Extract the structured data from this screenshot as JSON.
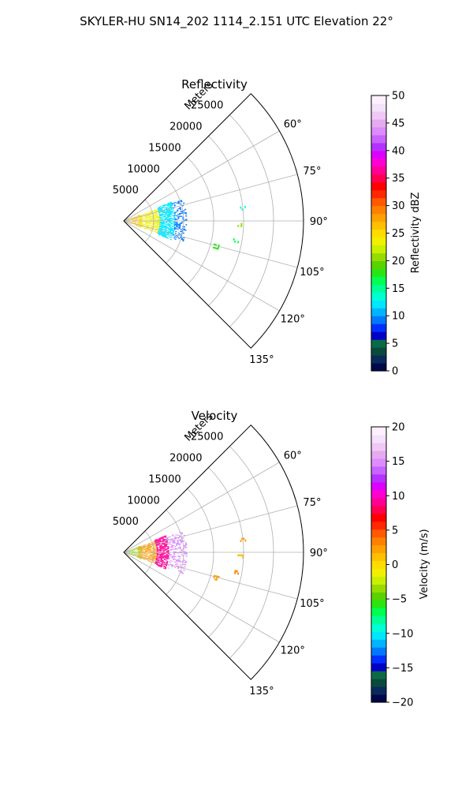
{
  "suptitle": "SKYLER-HU  SN14_202  1114_2.151 UTC Elevation 22°",
  "chart_data": [
    {
      "type": "heatmap",
      "projection": "polar-sector",
      "title": "Reflectivity",
      "radial_axis_label": "Meters",
      "radial_ticks": [
        5000,
        10000,
        15000,
        20000,
        25000
      ],
      "radial_tick_labels": [
        "5000",
        "10000",
        "15000",
        "20000",
        "25000"
      ],
      "rlim": [
        0,
        30000
      ],
      "angle_range_deg": [
        45,
        135
      ],
      "angle_ticks": [
        60,
        75,
        90,
        105,
        120,
        135
      ],
      "angle_tick_labels": [
        "60°",
        "75°",
        "90°",
        "105°",
        "120°",
        "135°"
      ],
      "grid": true,
      "colorbar": {
        "label": "Reflectivity dBZ",
        "range": [
          0,
          50
        ],
        "ticks": [
          0,
          5,
          10,
          15,
          20,
          25,
          30,
          35,
          40,
          45,
          50
        ],
        "tick_labels": [
          "0",
          "5",
          "10",
          "15",
          "20",
          "25",
          "30",
          "35",
          "40",
          "45",
          "50"
        ],
        "colors": [
          "#00084a",
          "#0a2a5c",
          "#0a4a3c",
          "#0a6a46",
          "#0000c8",
          "#0030ff",
          "#0078ff",
          "#00b4ff",
          "#00e6ff",
          "#00ffd2",
          "#00ff96",
          "#00ff50",
          "#28e614",
          "#5ad200",
          "#96dc00",
          "#c8f000",
          "#f0f000",
          "#ffdc00",
          "#ffc000",
          "#ffa000",
          "#ff8000",
          "#ff5a00",
          "#ff2800",
          "#ff0000",
          "#ff0050",
          "#ff0096",
          "#ff00d2",
          "#dc00ff",
          "#b432ff",
          "#c864ff",
          "#dc8cff",
          "#e6aaf0",
          "#f0c8f5",
          "#f5e1fa",
          "#fff0ff"
        ]
      },
      "data": [
        {
          "range": [
            0,
            3000
          ],
          "angle": [
            68,
            112
          ],
          "value": 27,
          "density": 0.55
        },
        {
          "range": [
            2500,
            6000
          ],
          "angle": [
            70,
            110
          ],
          "value": 23,
          "density": 0.65
        },
        {
          "range": [
            6000,
            8500
          ],
          "angle": [
            68,
            112
          ],
          "value": 12,
          "density": 0.7
        },
        {
          "range": [
            8500,
            10500
          ],
          "angle": [
            70,
            110
          ],
          "value": 9,
          "density": 0.35
        },
        {
          "range": [
            19500,
            20500
          ],
          "angle": [
            83,
            85
          ],
          "value": 14,
          "density": 0.5
        },
        {
          "range": [
            19000,
            20000
          ],
          "angle": [
            91,
            93
          ],
          "value": 20,
          "density": 0.5
        },
        {
          "range": [
            18500,
            19500
          ],
          "angle": [
            99,
            101
          ],
          "value": 16,
          "density": 0.5
        },
        {
          "range": [
            15500,
            16500
          ],
          "angle": [
            104,
            107
          ],
          "value": 18,
          "density": 0.5
        }
      ]
    },
    {
      "type": "heatmap",
      "projection": "polar-sector",
      "title": "Velocity",
      "radial_axis_label": "Meters",
      "radial_ticks": [
        5000,
        10000,
        15000,
        20000,
        25000
      ],
      "radial_tick_labels": [
        "5000",
        "10000",
        "15000",
        "20000",
        "25000"
      ],
      "rlim": [
        0,
        30000
      ],
      "angle_range_deg": [
        45,
        135
      ],
      "angle_ticks": [
        60,
        75,
        90,
        105,
        120,
        135
      ],
      "angle_tick_labels": [
        "60°",
        "75°",
        "90°",
        "105°",
        "120°",
        "135°"
      ],
      "grid": true,
      "colorbar": {
        "label": "Velocity (m/s)",
        "range": [
          -20,
          20
        ],
        "ticks": [
          -20,
          -15,
          -10,
          -5,
          0,
          5,
          10,
          15,
          20
        ],
        "tick_labels": [
          "−20",
          "−15",
          "−10",
          "−5",
          "0",
          "5",
          "10",
          "15",
          "20"
        ],
        "colors": [
          "#00084a",
          "#0a2a5c",
          "#0a4a3c",
          "#0a6a46",
          "#0000c8",
          "#0030ff",
          "#0078ff",
          "#00b4ff",
          "#00e6ff",
          "#00ffd2",
          "#00ff96",
          "#00ff50",
          "#28e614",
          "#5ad200",
          "#96dc00",
          "#c8f000",
          "#f0f000",
          "#ffdc00",
          "#ffc000",
          "#ffa000",
          "#ff8000",
          "#ff5a00",
          "#ff2800",
          "#ff0000",
          "#ff0050",
          "#ff0096",
          "#ff00d2",
          "#dc00ff",
          "#b432ff",
          "#c864ff",
          "#dc8cff",
          "#e6aaf0",
          "#f0c8f5",
          "#f5e1fa",
          "#fff0ff"
        ]
      },
      "data": [
        {
          "range": [
            0,
            3000
          ],
          "angle": [
            68,
            112
          ],
          "value": -4,
          "density": 0.55
        },
        {
          "range": [
            2500,
            5500
          ],
          "angle": [
            70,
            110
          ],
          "value": 2,
          "density": 0.65
        },
        {
          "range": [
            5500,
            7500
          ],
          "angle": [
            68,
            112
          ],
          "value": 9,
          "density": 0.75
        },
        {
          "range": [
            7500,
            10500
          ],
          "angle": [
            70,
            110
          ],
          "value": 15,
          "density": 0.35
        },
        {
          "range": [
            19500,
            20500
          ],
          "angle": [
            83,
            85
          ],
          "value": 2,
          "density": 0.5
        },
        {
          "range": [
            19000,
            20000
          ],
          "angle": [
            91,
            93
          ],
          "value": 1,
          "density": 0.5
        },
        {
          "range": [
            18500,
            19500
          ],
          "angle": [
            99,
            101
          ],
          "value": 3,
          "density": 0.5
        },
        {
          "range": [
            15500,
            16500
          ],
          "angle": [
            104,
            107
          ],
          "value": 2,
          "density": 0.5
        }
      ]
    }
  ]
}
